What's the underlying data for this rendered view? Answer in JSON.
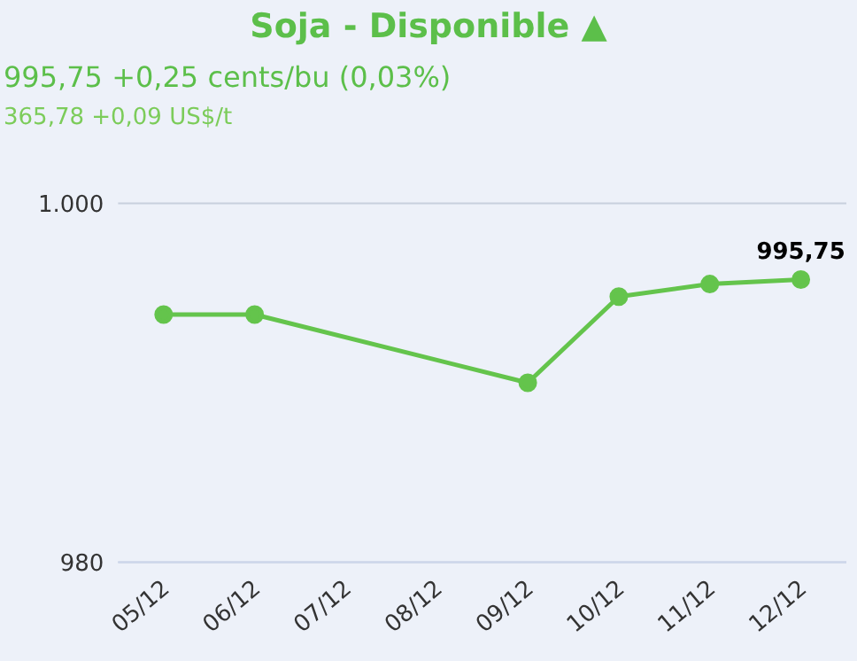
{
  "chart_data": {
    "type": "line",
    "title": "Soja - Disponible ▲",
    "subtitle": "995,75 +0,25 cents/bu (0,03%)",
    "annotations": [
      "365,78 +0,09 US$/t"
    ],
    "x": [
      "--12-05",
      "--12-06",
      "--12-09",
      "--12-10",
      "--12-11",
      "--12-12"
    ],
    "series": [
      {
        "color": "#64c44c",
        "values": [
          993.8,
          993.8,
          990.0,
          994.8,
          995.5,
          995.75
        ],
        "value_labels": [
          null,
          null,
          null,
          null,
          null,
          "995,75"
        ]
      }
    ],
    "xlim": [
      "--12-04T12:00",
      "--12-12T12:00"
    ],
    "xticks": [
      {
        "value": "--12-05",
        "label": "05/12"
      },
      {
        "value": "--12-06",
        "label": "06/12"
      },
      {
        "value": "--12-07",
        "label": "07/12"
      },
      {
        "value": "--12-08",
        "label": "08/12"
      },
      {
        "value": "--12-09",
        "label": "09/12"
      },
      {
        "value": "--12-10",
        "label": "10/12"
      },
      {
        "value": "--12-11",
        "label": "11/12"
      },
      {
        "value": "--12-12",
        "label": "12/12"
      }
    ],
    "ylim": [
      980,
      1000
    ],
    "yticks": [
      {
        "value": 980,
        "label": "980"
      },
      {
        "value": 1000,
        "label": "1.000"
      }
    ],
    "grid": "y",
    "legend": false,
    "marker": "circle",
    "line_style": "solid"
  }
}
